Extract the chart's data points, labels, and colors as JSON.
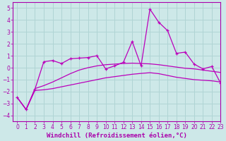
{
  "xlabel": "Windchill (Refroidissement éolien,°C)",
  "xlim": [
    -0.5,
    23
  ],
  "ylim": [
    -4.5,
    5.5
  ],
  "yticks": [
    -4,
    -3,
    -2,
    -1,
    0,
    1,
    2,
    3,
    4,
    5
  ],
  "xticks": [
    0,
    1,
    2,
    3,
    4,
    5,
    6,
    7,
    8,
    9,
    10,
    11,
    12,
    13,
    14,
    15,
    16,
    17,
    18,
    19,
    20,
    21,
    22,
    23
  ],
  "bg_color": "#cde8e8",
  "grid_color": "#b0d4d4",
  "line_color": "#bb00bb",
  "main_line_x": [
    0,
    1,
    2,
    3,
    4,
    5,
    6,
    7,
    8,
    9,
    10,
    11,
    12,
    13,
    14,
    15,
    16,
    17,
    18,
    19,
    20,
    21,
    22,
    23
  ],
  "main_line_y": [
    -2.5,
    -3.5,
    -1.8,
    0.5,
    0.6,
    0.35,
    0.75,
    0.8,
    0.85,
    1.0,
    -0.1,
    0.15,
    0.45,
    2.2,
    0.15,
    4.9,
    3.8,
    3.1,
    1.2,
    1.3,
    0.3,
    -0.1,
    0.1,
    -1.3
  ],
  "lower_line_x": [
    0,
    1,
    2,
    3,
    4,
    5,
    6,
    7,
    8,
    9,
    10,
    11,
    12,
    13,
    14,
    15,
    16,
    17,
    18,
    19,
    20,
    21,
    22,
    23
  ],
  "lower_line_y": [
    -2.5,
    -3.5,
    -1.9,
    -1.85,
    -1.75,
    -1.6,
    -1.45,
    -1.3,
    -1.15,
    -1.0,
    -0.85,
    -0.75,
    -0.65,
    -0.55,
    -0.48,
    -0.42,
    -0.5,
    -0.65,
    -0.8,
    -0.9,
    -1.0,
    -1.05,
    -1.1,
    -1.2
  ],
  "upper_line_x": [
    0,
    1,
    2,
    3,
    4,
    5,
    6,
    7,
    8,
    9,
    10,
    11,
    12,
    13,
    14,
    15,
    16,
    17,
    18,
    19,
    20,
    21,
    22,
    23
  ],
  "upper_line_y": [
    -2.5,
    -3.5,
    -1.75,
    -1.5,
    -1.2,
    -0.85,
    -0.5,
    -0.2,
    0.0,
    0.15,
    0.25,
    0.3,
    0.35,
    0.38,
    0.35,
    0.32,
    0.25,
    0.15,
    0.05,
    -0.05,
    -0.1,
    -0.2,
    -0.3,
    -0.4
  ],
  "font_color": "#aa00aa",
  "tick_fontsize": 5.5,
  "label_fontsize": 6.5
}
